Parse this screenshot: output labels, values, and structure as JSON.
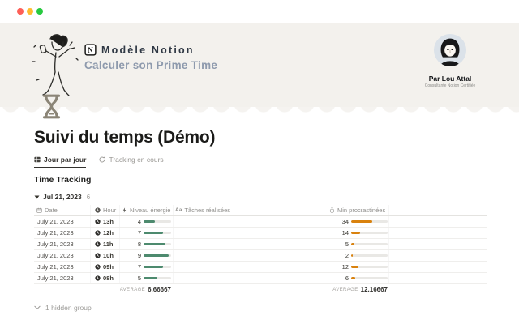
{
  "window": {
    "traffic_lights": {
      "close": "#fe5f57",
      "minimize": "#febc2e",
      "zoom": "#27c93f"
    }
  },
  "banner": {
    "brand": "Modèle Notion",
    "subtitle": "Calculer son Prime Time",
    "author": {
      "name": "Par Lou Attal",
      "role": "Consultante Notion Certifiée"
    }
  },
  "page": {
    "title": "Suivi du temps (Démo)",
    "tabs": [
      {
        "label": "Jour par jour",
        "active": true
      },
      {
        "label": "Tracking en cours",
        "active": false
      }
    ],
    "section_title": "Time Tracking",
    "group": {
      "label": "Jul 21, 2023",
      "count": "6"
    },
    "hidden_group_label": "1 hidden group"
  },
  "table": {
    "columns": [
      {
        "icon": "calendar-icon",
        "label": "Date"
      },
      {
        "icon": "clock-icon",
        "label": "Hour"
      },
      {
        "icon": "lightning-icon",
        "label": "Niveau énergie"
      },
      {
        "icon": "text-icon",
        "icon_glyph": "Aa",
        "label": "Tâches réalisées"
      },
      {
        "icon": "timer-icon",
        "label": "Min procrastinées"
      }
    ],
    "rows": [
      {
        "date": "July 21, 2023",
        "hour": "13h",
        "energy": 4,
        "tasks": "",
        "minutes": 34
      },
      {
        "date": "July 21, 2023",
        "hour": "12h",
        "energy": 7,
        "tasks": "",
        "minutes": 14
      },
      {
        "date": "July 21, 2023",
        "hour": "11h",
        "energy": 8,
        "tasks": "",
        "minutes": 5
      },
      {
        "date": "July 21, 2023",
        "hour": "10h",
        "energy": 9,
        "tasks": "",
        "minutes": 2
      },
      {
        "date": "July 21, 2023",
        "hour": "09h",
        "energy": 7,
        "tasks": "",
        "minutes": 12
      },
      {
        "date": "July 21, 2023",
        "hour": "08h",
        "energy": 5,
        "tasks": "",
        "minutes": 6
      }
    ],
    "energy_max": 10,
    "minutes_max": 60,
    "average_label": "AVERAGE",
    "energy_average": "6.66667",
    "minutes_average": "12.16667",
    "colors": {
      "energy_bar": "#4d8a6e",
      "minutes_bar": "#d9820e",
      "track": "#e9e8e5"
    }
  }
}
